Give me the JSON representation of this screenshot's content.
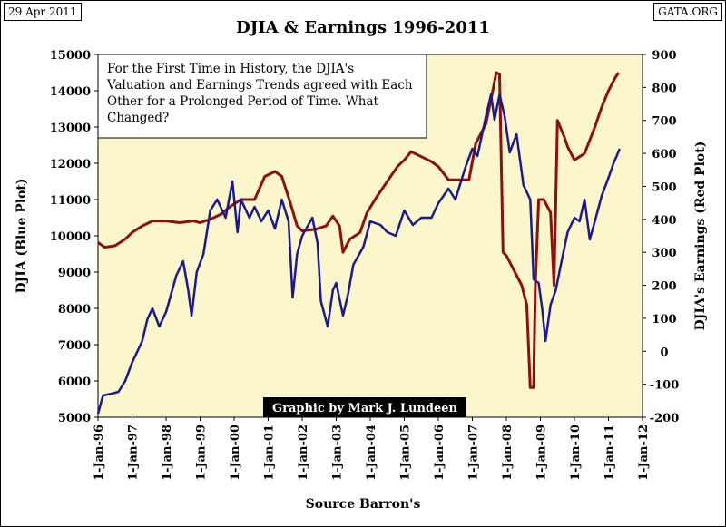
{
  "header": {
    "date": "29 Apr 2011",
    "source_tag": "GATA.ORG"
  },
  "chart_data": {
    "type": "line",
    "title": "DJIA & Earnings 1996-2011",
    "ylabel_left": "DJIA (Blue Plot)",
    "ylabel_right": "DJIA's Earnings (Red Plot)",
    "xlabel": "Source Barron's",
    "annotation": "For the First Time in History, the DJIA's Valuation and Earnings Trends agreed with Each Other for a Prolonged Period of Time. What Changed?",
    "credit": "Graphic by Mark J. Lundeen",
    "ylim_left": [
      5000,
      15000
    ],
    "ylim_right": [
      -200,
      900
    ],
    "xlim": [
      1996,
      2012
    ],
    "y_ticks_left": [
      "5000",
      "6000",
      "7000",
      "8000",
      "9000",
      "10000",
      "11000",
      "12000",
      "13000",
      "14000",
      "15000"
    ],
    "y_ticks_right": [
      "-200",
      "-100",
      "0",
      "100",
      "200",
      "300",
      "400",
      "500",
      "600",
      "700",
      "800",
      "900"
    ],
    "x_ticks": [
      "1-Jan-96",
      "1-Jan-97",
      "1-Jan-98",
      "1-Jan-99",
      "1-Jan-00",
      "1-Jan-01",
      "1-Jan-02",
      "1-Jan-03",
      "1-Jan-04",
      "1-Jan-05",
      "1-Jan-06",
      "1-Jan-07",
      "1-Jan-08",
      "1-Jan-09",
      "1-Jan-10",
      "1-Jan-11",
      "1-Jan-12"
    ],
    "colors": {
      "djia": "#1a1a8c",
      "earnings": "#8b1010",
      "plot_background": "#fcf6cc"
    },
    "series": [
      {
        "name": "DJIA",
        "axis": "left",
        "points": [
          [
            1996.0,
            5100
          ],
          [
            1996.15,
            5600
          ],
          [
            1996.4,
            5650
          ],
          [
            1996.6,
            5700
          ],
          [
            1996.8,
            6000
          ],
          [
            1997.0,
            6500
          ],
          [
            1997.2,
            6900
          ],
          [
            1997.3,
            7100
          ],
          [
            1997.45,
            7700
          ],
          [
            1997.6,
            8000
          ],
          [
            1997.8,
            7500
          ],
          [
            1998.0,
            7900
          ],
          [
            1998.3,
            8900
          ],
          [
            1998.5,
            9300
          ],
          [
            1998.65,
            8500
          ],
          [
            1998.75,
            7800
          ],
          [
            1998.9,
            9000
          ],
          [
            1999.1,
            9500
          ],
          [
            1999.3,
            10700
          ],
          [
            1999.5,
            11000
          ],
          [
            1999.75,
            10500
          ],
          [
            1999.95,
            11500
          ],
          [
            2000.1,
            10100
          ],
          [
            2000.2,
            11000
          ],
          [
            2000.45,
            10500
          ],
          [
            2000.6,
            10800
          ],
          [
            2000.8,
            10400
          ],
          [
            2001.0,
            10700
          ],
          [
            2001.2,
            10200
          ],
          [
            2001.4,
            11000
          ],
          [
            2001.6,
            10400
          ],
          [
            2001.72,
            8300
          ],
          [
            2001.85,
            9500
          ],
          [
            2002.0,
            10000
          ],
          [
            2002.3,
            10500
          ],
          [
            2002.45,
            9800
          ],
          [
            2002.55,
            8200
          ],
          [
            2002.75,
            7500
          ],
          [
            2002.9,
            8500
          ],
          [
            2003.0,
            8700
          ],
          [
            2003.2,
            7800
          ],
          [
            2003.35,
            8400
          ],
          [
            2003.5,
            9200
          ],
          [
            2003.8,
            9700
          ],
          [
            2004.0,
            10400
          ],
          [
            2004.3,
            10300
          ],
          [
            2004.5,
            10100
          ],
          [
            2004.75,
            10000
          ],
          [
            2005.0,
            10700
          ],
          [
            2005.25,
            10300
          ],
          [
            2005.5,
            10500
          ],
          [
            2005.8,
            10500
          ],
          [
            2006.0,
            10900
          ],
          [
            2006.3,
            11300
          ],
          [
            2006.5,
            11000
          ],
          [
            2006.8,
            11900
          ],
          [
            2007.0,
            12400
          ],
          [
            2007.15,
            12200
          ],
          [
            2007.4,
            13300
          ],
          [
            2007.55,
            13900
          ],
          [
            2007.65,
            13200
          ],
          [
            2007.8,
            13900
          ],
          [
            2007.95,
            13300
          ],
          [
            2008.1,
            12300
          ],
          [
            2008.3,
            12800
          ],
          [
            2008.5,
            11400
          ],
          [
            2008.7,
            11000
          ],
          [
            2008.8,
            8800
          ],
          [
            2008.95,
            8700
          ],
          [
            2009.05,
            8000
          ],
          [
            2009.15,
            7100
          ],
          [
            2009.3,
            8100
          ],
          [
            2009.45,
            8500
          ],
          [
            2009.6,
            9200
          ],
          [
            2009.8,
            10100
          ],
          [
            2010.0,
            10500
          ],
          [
            2010.15,
            10400
          ],
          [
            2010.3,
            11000
          ],
          [
            2010.45,
            9900
          ],
          [
            2010.6,
            10400
          ],
          [
            2010.8,
            11100
          ],
          [
            2011.0,
            11600
          ],
          [
            2011.15,
            12000
          ],
          [
            2011.33,
            12400
          ]
        ]
      },
      {
        "name": "Earnings",
        "axis": "right",
        "points": [
          [
            1996.0,
            330
          ],
          [
            1996.2,
            315
          ],
          [
            1996.5,
            320
          ],
          [
            1996.8,
            340
          ],
          [
            1997.0,
            360
          ],
          [
            1997.3,
            380
          ],
          [
            1997.6,
            395
          ],
          [
            1998.0,
            395
          ],
          [
            1998.4,
            390
          ],
          [
            1998.8,
            395
          ],
          [
            1999.0,
            390
          ],
          [
            1999.3,
            400
          ],
          [
            1999.6,
            415
          ],
          [
            1999.9,
            440
          ],
          [
            2000.2,
            460
          ],
          [
            2000.6,
            460
          ],
          [
            2000.9,
            530
          ],
          [
            2001.2,
            545
          ],
          [
            2001.4,
            530
          ],
          [
            2001.65,
            450
          ],
          [
            2001.85,
            380
          ],
          [
            2002.0,
            365
          ],
          [
            2002.4,
            370
          ],
          [
            2002.7,
            380
          ],
          [
            2002.9,
            410
          ],
          [
            2003.1,
            380
          ],
          [
            2003.2,
            300
          ],
          [
            2003.4,
            340
          ],
          [
            2003.7,
            360
          ],
          [
            2003.9,
            420
          ],
          [
            2004.2,
            470
          ],
          [
            2004.4,
            500
          ],
          [
            2004.6,
            530
          ],
          [
            2004.8,
            560
          ],
          [
            2005.0,
            580
          ],
          [
            2005.2,
            605
          ],
          [
            2005.5,
            590
          ],
          [
            2005.8,
            575
          ],
          [
            2006.0,
            560
          ],
          [
            2006.3,
            520
          ],
          [
            2006.6,
            520
          ],
          [
            2006.9,
            520
          ],
          [
            2007.1,
            630
          ],
          [
            2007.4,
            690
          ],
          [
            2007.6,
            790
          ],
          [
            2007.7,
            845
          ],
          [
            2007.8,
            840
          ],
          [
            2007.9,
            300
          ],
          [
            2008.0,
            290
          ],
          [
            2008.2,
            250
          ],
          [
            2008.45,
            200
          ],
          [
            2008.6,
            140
          ],
          [
            2008.7,
            -110
          ],
          [
            2008.8,
            -110
          ],
          [
            2008.85,
            200
          ],
          [
            2008.95,
            460
          ],
          [
            2009.1,
            460
          ],
          [
            2009.3,
            420
          ],
          [
            2009.4,
            200
          ],
          [
            2009.5,
            700
          ],
          [
            2009.7,
            650
          ],
          [
            2009.8,
            620
          ],
          [
            2010.0,
            580
          ],
          [
            2010.3,
            600
          ],
          [
            2010.6,
            680
          ],
          [
            2010.8,
            740
          ],
          [
            2011.0,
            790
          ],
          [
            2011.2,
            830
          ],
          [
            2011.3,
            845
          ]
        ]
      }
    ]
  }
}
